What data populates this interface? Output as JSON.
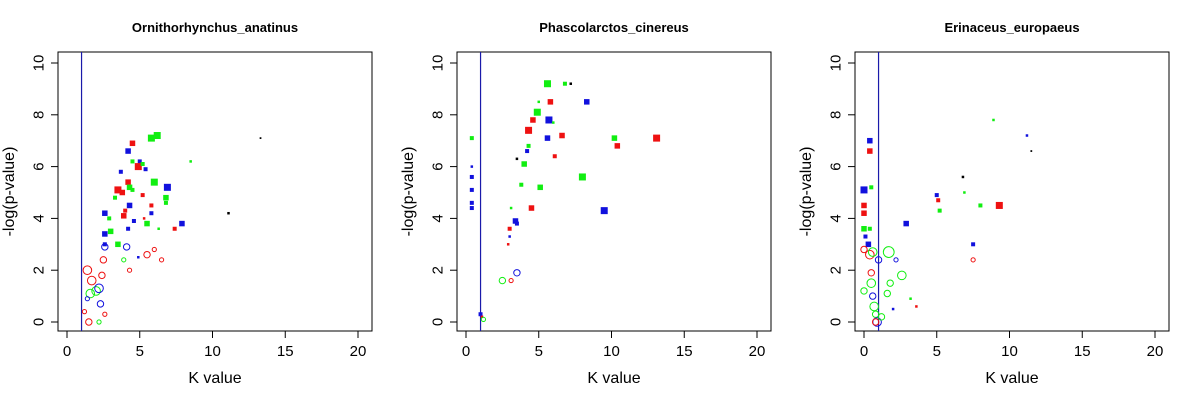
{
  "colors": {
    "red": "#ee1111",
    "green": "#11ee11",
    "blue": "#1111dd",
    "vline": "#1a1aaa"
  },
  "chart_data": [
    {
      "type": "scatter",
      "title": "Ornithorhynchus_anatinus",
      "xlabel": "K value",
      "ylabel": "-log(p-value)",
      "xlim": [
        0,
        20
      ],
      "ylim": [
        0,
        10
      ],
      "xticks": [
        0,
        5,
        10,
        15,
        20
      ],
      "yticks": [
        0,
        2,
        4,
        6,
        8,
        10
      ],
      "vline": 1,
      "grid": false,
      "points": [
        {
          "x": 1.4,
          "y": 2.0,
          "c": "red",
          "m": "o",
          "s": 3
        },
        {
          "x": 1.7,
          "y": 1.6,
          "c": "red",
          "m": "o",
          "s": 3
        },
        {
          "x": 2.0,
          "y": 1.2,
          "c": "green",
          "m": "o",
          "s": 3
        },
        {
          "x": 1.6,
          "y": 1.1,
          "c": "green",
          "m": "o",
          "s": 3
        },
        {
          "x": 2.2,
          "y": 1.3,
          "c": "blue",
          "m": "o",
          "s": 3
        },
        {
          "x": 2.4,
          "y": 1.8,
          "c": "red",
          "m": "o",
          "s": 2
        },
        {
          "x": 2.3,
          "y": 0.7,
          "c": "blue",
          "m": "o",
          "s": 2
        },
        {
          "x": 1.5,
          "y": 0.0,
          "c": "red",
          "m": "o",
          "s": 2
        },
        {
          "x": 1.2,
          "y": 0.4,
          "c": "red",
          "m": "o",
          "s": 1
        },
        {
          "x": 1.4,
          "y": 0.9,
          "c": "blue",
          "m": "o",
          "s": 1
        },
        {
          "x": 2.2,
          "y": 0.0,
          "c": "green",
          "m": "o",
          "s": 1
        },
        {
          "x": 2.6,
          "y": 0.3,
          "c": "red",
          "m": "o",
          "s": 1
        },
        {
          "x": 2.6,
          "y": 2.9,
          "c": "blue",
          "m": "o",
          "s": 2
        },
        {
          "x": 2.5,
          "y": 2.4,
          "c": "red",
          "m": "o",
          "s": 2
        },
        {
          "x": 4.1,
          "y": 2.9,
          "c": "blue",
          "m": "o",
          "s": 2
        },
        {
          "x": 4.3,
          "y": 2.0,
          "c": "red",
          "m": "o",
          "s": 1
        },
        {
          "x": 3.9,
          "y": 2.4,
          "c": "green",
          "m": "o",
          "s": 1
        },
        {
          "x": 5.5,
          "y": 2.6,
          "c": "red",
          "m": "o",
          "s": 2
        },
        {
          "x": 6.0,
          "y": 2.8,
          "c": "red",
          "m": "o",
          "s": 1
        },
        {
          "x": 6.5,
          "y": 2.4,
          "c": "red",
          "m": "o",
          "s": 1
        },
        {
          "x": 2.6,
          "y": 4.2,
          "c": "blue",
          "m": "s",
          "s": 3
        },
        {
          "x": 2.6,
          "y": 3.4,
          "c": "blue",
          "m": "s",
          "s": 3
        },
        {
          "x": 2.6,
          "y": 3.0,
          "c": "blue",
          "m": "s",
          "s": 2
        },
        {
          "x": 3.0,
          "y": 3.5,
          "c": "green",
          "m": "s",
          "s": 3
        },
        {
          "x": 2.9,
          "y": 4.0,
          "c": "green",
          "m": "s",
          "s": 2
        },
        {
          "x": 3.5,
          "y": 3.0,
          "c": "green",
          "m": "s",
          "s": 3
        },
        {
          "x": 3.3,
          "y": 4.8,
          "c": "green",
          "m": "s",
          "s": 2
        },
        {
          "x": 3.5,
          "y": 5.1,
          "c": "red",
          "m": "s",
          "s": 4
        },
        {
          "x": 3.8,
          "y": 5.0,
          "c": "red",
          "m": "s",
          "s": 3
        },
        {
          "x": 3.7,
          "y": 5.8,
          "c": "blue",
          "m": "s",
          "s": 2
        },
        {
          "x": 3.9,
          "y": 4.1,
          "c": "red",
          "m": "s",
          "s": 3
        },
        {
          "x": 4.0,
          "y": 4.3,
          "c": "red",
          "m": "s",
          "s": 2
        },
        {
          "x": 4.2,
          "y": 5.4,
          "c": "red",
          "m": "s",
          "s": 3
        },
        {
          "x": 4.3,
          "y": 5.2,
          "c": "green",
          "m": "s",
          "s": 3
        },
        {
          "x": 4.2,
          "y": 6.6,
          "c": "blue",
          "m": "s",
          "s": 3
        },
        {
          "x": 4.5,
          "y": 6.9,
          "c": "red",
          "m": "s",
          "s": 3
        },
        {
          "x": 4.5,
          "y": 6.2,
          "c": "green",
          "m": "s",
          "s": 2
        },
        {
          "x": 4.3,
          "y": 4.5,
          "c": "blue",
          "m": "s",
          "s": 3
        },
        {
          "x": 4.6,
          "y": 3.9,
          "c": "blue",
          "m": "s",
          "s": 2
        },
        {
          "x": 4.5,
          "y": 5.1,
          "c": "green",
          "m": "s",
          "s": 2
        },
        {
          "x": 4.2,
          "y": 3.6,
          "c": "blue",
          "m": "s",
          "s": 2
        },
        {
          "x": 4.9,
          "y": 2.5,
          "c": "blue",
          "m": "s",
          "s": 1
        },
        {
          "x": 5.0,
          "y": 6.2,
          "c": "blue",
          "m": "s",
          "s": 2
        },
        {
          "x": 4.9,
          "y": 6.0,
          "c": "red",
          "m": "s",
          "s": 4
        },
        {
          "x": 5.2,
          "y": 6.1,
          "c": "green",
          "m": "s",
          "s": 2
        },
        {
          "x": 5.2,
          "y": 4.9,
          "c": "red",
          "m": "s",
          "s": 2
        },
        {
          "x": 5.4,
          "y": 5.9,
          "c": "blue",
          "m": "s",
          "s": 2
        },
        {
          "x": 5.3,
          "y": 4.0,
          "c": "red",
          "m": "s",
          "s": 1
        },
        {
          "x": 5.5,
          "y": 3.8,
          "c": "green",
          "m": "s",
          "s": 3
        },
        {
          "x": 5.8,
          "y": 7.1,
          "c": "green",
          "m": "s",
          "s": 4
        },
        {
          "x": 6.2,
          "y": 7.2,
          "c": "green",
          "m": "s",
          "s": 4
        },
        {
          "x": 6.0,
          "y": 5.4,
          "c": "green",
          "m": "s",
          "s": 4
        },
        {
          "x": 5.8,
          "y": 4.5,
          "c": "red",
          "m": "s",
          "s": 2
        },
        {
          "x": 5.8,
          "y": 4.2,
          "c": "blue",
          "m": "s",
          "s": 2
        },
        {
          "x": 6.3,
          "y": 3.6,
          "c": "green",
          "m": "s",
          "s": 1
        },
        {
          "x": 6.8,
          "y": 4.8,
          "c": "green",
          "m": "s",
          "s": 3
        },
        {
          "x": 6.8,
          "y": 4.6,
          "c": "green",
          "m": "s",
          "s": 2
        },
        {
          "x": 6.9,
          "y": 5.2,
          "c": "blue",
          "m": "s",
          "s": 4
        },
        {
          "x": 7.4,
          "y": 3.6,
          "c": "red",
          "m": "s",
          "s": 2
        },
        {
          "x": 7.9,
          "y": 3.8,
          "c": "blue",
          "m": "s",
          "s": 3
        },
        {
          "x": 8.5,
          "y": 6.2,
          "c": "green",
          "m": "s",
          "s": 1
        },
        {
          "x": 11.1,
          "y": 4.2,
          "c": "black",
          "m": "s",
          "s": 1
        },
        {
          "x": 13.3,
          "y": 7.1,
          "c": "black",
          "m": "s",
          "s": 0.5
        }
      ]
    },
    {
      "type": "scatter",
      "title": "Phascolarctos_cinereus",
      "xlabel": "K value",
      "ylabel": "-log(p-value)",
      "xlim": [
        0,
        20
      ],
      "ylim": [
        0,
        10
      ],
      "xticks": [
        0,
        5,
        10,
        15,
        20
      ],
      "yticks": [
        0,
        2,
        4,
        6,
        8,
        10
      ],
      "vline": 1,
      "grid": false,
      "points": [
        {
          "x": 0.4,
          "y": 7.1,
          "c": "green",
          "m": "s",
          "s": 2
        },
        {
          "x": 0.4,
          "y": 6.0,
          "c": "blue",
          "m": "s",
          "s": 1
        },
        {
          "x": 0.4,
          "y": 5.6,
          "c": "blue",
          "m": "s",
          "s": 2
        },
        {
          "x": 0.4,
          "y": 5.1,
          "c": "blue",
          "m": "s",
          "s": 2
        },
        {
          "x": 0.4,
          "y": 4.6,
          "c": "blue",
          "m": "s",
          "s": 2
        },
        {
          "x": 0.4,
          "y": 4.4,
          "c": "blue",
          "m": "s",
          "s": 2
        },
        {
          "x": 1.0,
          "y": 0.3,
          "c": "blue",
          "m": "s",
          "s": 2
        },
        {
          "x": 1.1,
          "y": 0.2,
          "c": "red",
          "m": "s",
          "s": 1
        },
        {
          "x": 1.2,
          "y": 0.1,
          "c": "green",
          "m": "o",
          "s": 1
        },
        {
          "x": 2.5,
          "y": 1.6,
          "c": "green",
          "m": "o",
          "s": 2
        },
        {
          "x": 3.1,
          "y": 1.6,
          "c": "red",
          "m": "o",
          "s": 1
        },
        {
          "x": 3.5,
          "y": 1.9,
          "c": "blue",
          "m": "o",
          "s": 2
        },
        {
          "x": 3.0,
          "y": 3.6,
          "c": "red",
          "m": "s",
          "s": 2
        },
        {
          "x": 2.9,
          "y": 3.0,
          "c": "red",
          "m": "s",
          "s": 1
        },
        {
          "x": 3.0,
          "y": 3.3,
          "c": "blue",
          "m": "s",
          "s": 1
        },
        {
          "x": 3.1,
          "y": 4.4,
          "c": "green",
          "m": "s",
          "s": 1
        },
        {
          "x": 3.4,
          "y": 3.9,
          "c": "blue",
          "m": "s",
          "s": 3
        },
        {
          "x": 3.5,
          "y": 3.8,
          "c": "blue",
          "m": "s",
          "s": 2
        },
        {
          "x": 3.5,
          "y": 6.3,
          "c": "black",
          "m": "s",
          "s": 1
        },
        {
          "x": 3.8,
          "y": 5.3,
          "c": "green",
          "m": "s",
          "s": 2
        },
        {
          "x": 4.0,
          "y": 6.1,
          "c": "green",
          "m": "s",
          "s": 3
        },
        {
          "x": 4.2,
          "y": 6.6,
          "c": "blue",
          "m": "s",
          "s": 2
        },
        {
          "x": 4.3,
          "y": 6.8,
          "c": "green",
          "m": "s",
          "s": 2
        },
        {
          "x": 4.3,
          "y": 7.4,
          "c": "red",
          "m": "s",
          "s": 4
        },
        {
          "x": 4.5,
          "y": 4.4,
          "c": "red",
          "m": "s",
          "s": 3
        },
        {
          "x": 4.6,
          "y": 7.8,
          "c": "red",
          "m": "s",
          "s": 3
        },
        {
          "x": 4.9,
          "y": 8.1,
          "c": "green",
          "m": "s",
          "s": 4
        },
        {
          "x": 5.0,
          "y": 8.5,
          "c": "green",
          "m": "s",
          "s": 1
        },
        {
          "x": 5.1,
          "y": 5.2,
          "c": "green",
          "m": "s",
          "s": 3
        },
        {
          "x": 5.5,
          "y": 9.2,
          "c": "black",
          "m": "s",
          "s": 2
        },
        {
          "x": 5.6,
          "y": 9.2,
          "c": "green",
          "m": "s",
          "s": 4
        },
        {
          "x": 5.7,
          "y": 7.8,
          "c": "blue",
          "m": "s",
          "s": 4
        },
        {
          "x": 5.6,
          "y": 7.1,
          "c": "blue",
          "m": "s",
          "s": 3
        },
        {
          "x": 5.8,
          "y": 8.5,
          "c": "red",
          "m": "s",
          "s": 3
        },
        {
          "x": 6.0,
          "y": 7.7,
          "c": "green",
          "m": "s",
          "s": 1
        },
        {
          "x": 6.1,
          "y": 6.4,
          "c": "red",
          "m": "s",
          "s": 2
        },
        {
          "x": 6.6,
          "y": 7.2,
          "c": "red",
          "m": "s",
          "s": 3
        },
        {
          "x": 6.8,
          "y": 9.2,
          "c": "green",
          "m": "s",
          "s": 2
        },
        {
          "x": 7.2,
          "y": 9.2,
          "c": "black",
          "m": "s",
          "s": 1
        },
        {
          "x": 8.0,
          "y": 5.6,
          "c": "green",
          "m": "s",
          "s": 4
        },
        {
          "x": 8.3,
          "y": 8.5,
          "c": "blue",
          "m": "s",
          "s": 3
        },
        {
          "x": 9.5,
          "y": 4.3,
          "c": "blue",
          "m": "s",
          "s": 4
        },
        {
          "x": 10.2,
          "y": 7.1,
          "c": "green",
          "m": "s",
          "s": 3
        },
        {
          "x": 10.4,
          "y": 6.8,
          "c": "red",
          "m": "s",
          "s": 3
        },
        {
          "x": 13.1,
          "y": 7.1,
          "c": "red",
          "m": "s",
          "s": 4
        }
      ]
    },
    {
      "type": "scatter",
      "title": "Erinaceus_europaeus",
      "xlabel": "K value",
      "ylabel": "-log(p-value)",
      "xlim": [
        0,
        20
      ],
      "ylim": [
        0,
        10
      ],
      "xticks": [
        0,
        5,
        10,
        15,
        20
      ],
      "yticks": [
        0,
        2,
        4,
        6,
        8,
        10
      ],
      "vline": 1,
      "grid": false,
      "points": [
        {
          "x": 0.0,
          "y": 5.1,
          "c": "blue",
          "m": "s",
          "s": 4
        },
        {
          "x": 0.0,
          "y": 4.5,
          "c": "red",
          "m": "s",
          "s": 3
        },
        {
          "x": 0.0,
          "y": 4.2,
          "c": "red",
          "m": "s",
          "s": 3
        },
        {
          "x": 0.0,
          "y": 3.6,
          "c": "green",
          "m": "s",
          "s": 3
        },
        {
          "x": 0.1,
          "y": 3.3,
          "c": "blue",
          "m": "s",
          "s": 2
        },
        {
          "x": 0.3,
          "y": 3.0,
          "c": "blue",
          "m": "s",
          "s": 3
        },
        {
          "x": 0.4,
          "y": 7.0,
          "c": "blue",
          "m": "s",
          "s": 3
        },
        {
          "x": 0.4,
          "y": 6.6,
          "c": "red",
          "m": "s",
          "s": 3
        },
        {
          "x": 0.5,
          "y": 5.2,
          "c": "green",
          "m": "s",
          "s": 2
        },
        {
          "x": 0.4,
          "y": 3.6,
          "c": "green",
          "m": "s",
          "s": 2
        },
        {
          "x": 0.0,
          "y": 2.8,
          "c": "red",
          "m": "o",
          "s": 2
        },
        {
          "x": 0.4,
          "y": 2.6,
          "c": "red",
          "m": "o",
          "s": 3
        },
        {
          "x": 0.6,
          "y": 2.7,
          "c": "green",
          "m": "o",
          "s": 3
        },
        {
          "x": 0.5,
          "y": 1.9,
          "c": "red",
          "m": "o",
          "s": 2
        },
        {
          "x": 0.0,
          "y": 1.2,
          "c": "green",
          "m": "o",
          "s": 2
        },
        {
          "x": 0.5,
          "y": 1.5,
          "c": "green",
          "m": "o",
          "s": 3
        },
        {
          "x": 0.6,
          "y": 1.0,
          "c": "blue",
          "m": "o",
          "s": 2
        },
        {
          "x": 0.7,
          "y": 0.6,
          "c": "green",
          "m": "o",
          "s": 3
        },
        {
          "x": 0.8,
          "y": 0.3,
          "c": "green",
          "m": "o",
          "s": 2
        },
        {
          "x": 0.9,
          "y": 0.0,
          "c": "blue",
          "m": "o",
          "s": 3
        },
        {
          "x": 0.8,
          "y": 0.0,
          "c": "red",
          "m": "o",
          "s": 2
        },
        {
          "x": 1.2,
          "y": 0.2,
          "c": "green",
          "m": "o",
          "s": 2
        },
        {
          "x": 1.0,
          "y": 2.4,
          "c": "blue",
          "m": "o",
          "s": 2
        },
        {
          "x": 1.7,
          "y": 2.7,
          "c": "green",
          "m": "o",
          "s": 4
        },
        {
          "x": 2.2,
          "y": 2.4,
          "c": "blue",
          "m": "o",
          "s": 1
        },
        {
          "x": 1.8,
          "y": 1.5,
          "c": "green",
          "m": "o",
          "s": 2
        },
        {
          "x": 2.6,
          "y": 1.8,
          "c": "green",
          "m": "o",
          "s": 3
        },
        {
          "x": 1.6,
          "y": 1.1,
          "c": "green",
          "m": "o",
          "s": 2
        },
        {
          "x": 2.0,
          "y": 0.5,
          "c": "blue",
          "m": "s",
          "s": 1
        },
        {
          "x": 3.2,
          "y": 0.9,
          "c": "green",
          "m": "s",
          "s": 1
        },
        {
          "x": 3.6,
          "y": 0.6,
          "c": "red",
          "m": "s",
          "s": 1
        },
        {
          "x": 2.9,
          "y": 3.8,
          "c": "blue",
          "m": "s",
          "s": 3
        },
        {
          "x": 5.0,
          "y": 4.9,
          "c": "blue",
          "m": "s",
          "s": 2
        },
        {
          "x": 5.1,
          "y": 4.7,
          "c": "red",
          "m": "s",
          "s": 2
        },
        {
          "x": 5.2,
          "y": 4.3,
          "c": "green",
          "m": "s",
          "s": 2
        },
        {
          "x": 6.8,
          "y": 5.6,
          "c": "black",
          "m": "s",
          "s": 1
        },
        {
          "x": 6.9,
          "y": 5.0,
          "c": "green",
          "m": "s",
          "s": 1
        },
        {
          "x": 7.5,
          "y": 3.0,
          "c": "blue",
          "m": "s",
          "s": 2
        },
        {
          "x": 7.5,
          "y": 2.4,
          "c": "red",
          "m": "o",
          "s": 1
        },
        {
          "x": 8.0,
          "y": 4.5,
          "c": "green",
          "m": "s",
          "s": 2
        },
        {
          "x": 8.9,
          "y": 7.8,
          "c": "green",
          "m": "s",
          "s": 1
        },
        {
          "x": 9.3,
          "y": 4.5,
          "c": "red",
          "m": "s",
          "s": 4
        },
        {
          "x": 11.2,
          "y": 7.2,
          "c": "blue",
          "m": "s",
          "s": 1
        },
        {
          "x": 11.5,
          "y": 6.6,
          "c": "black",
          "m": "s",
          "s": 0.5
        }
      ]
    }
  ]
}
